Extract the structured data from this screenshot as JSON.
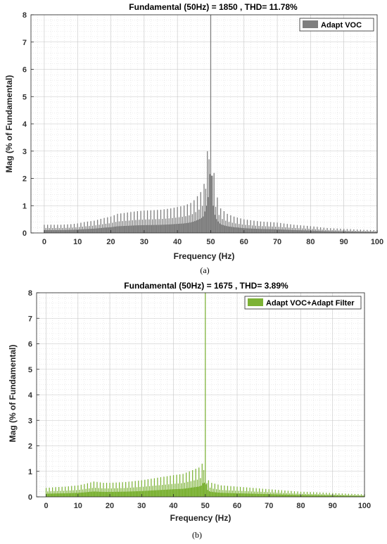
{
  "chart_data": [
    {
      "type": "bar",
      "title": "Fundamental (50Hz) = 1850 , THD= 11.78%",
      "xlabel": "Frequency (Hz)",
      "ylabel": "Mag (% of Fundamental)",
      "xlim": [
        -4,
        100
      ],
      "ylim": [
        0,
        8
      ],
      "xticks": [
        0,
        10,
        20,
        30,
        40,
        50,
        60,
        70,
        80,
        90,
        100
      ],
      "yticks": [
        0,
        1,
        2,
        3,
        4,
        5,
        6,
        7,
        8
      ],
      "grid": true,
      "minor_grid": true,
      "legend_position": "top-right",
      "caption": "(a)",
      "series": [
        {
          "name": "Adapt VOC",
          "color": "#7f7f7f",
          "envelope": {
            "x": [
              0,
              2,
              5,
              8,
              10,
              12,
              15,
              18,
              20,
              22,
              25,
              28,
              30,
              32,
              35,
              38,
              40,
              42,
              44,
              45,
              46,
              47,
              48,
              48.5,
              49,
              49.5,
              49.8,
              50,
              50.2,
              50.5,
              51,
              51.5,
              52,
              53,
              54,
              55,
              57,
              60,
              63,
              65,
              70,
              75,
              80,
              85,
              90,
              95,
              100
            ],
            "y": [
              0.3,
              0.3,
              0.3,
              0.32,
              0.35,
              0.4,
              0.45,
              0.55,
              0.6,
              0.7,
              0.75,
              0.8,
              0.82,
              0.83,
              0.85,
              0.9,
              0.95,
              1.0,
              1.1,
              1.2,
              1.35,
              1.5,
              1.8,
              2.7,
              3.0,
              4.5,
              6.5,
              8.0,
              6.5,
              3.5,
              2.2,
              1.6,
              1.3,
              0.9,
              0.8,
              0.7,
              0.6,
              0.5,
              0.45,
              0.42,
              0.38,
              0.3,
              0.25,
              0.18,
              0.15,
              0.12,
              0.1
            ]
          }
        }
      ]
    },
    {
      "type": "bar",
      "title": "Fundamental (50Hz) = 1675 , THD= 3.89%",
      "xlabel": "Frequency (Hz)",
      "ylabel": "Mag (% of Fundamental)",
      "xlim": [
        -3,
        100
      ],
      "ylim": [
        0,
        8
      ],
      "xticks": [
        0,
        10,
        20,
        30,
        40,
        50,
        60,
        70,
        80,
        90,
        100
      ],
      "yticks": [
        0,
        1,
        2,
        3,
        4,
        5,
        6,
        7,
        8
      ],
      "grid": true,
      "minor_grid": true,
      "legend_position": "top-right",
      "caption": "(b)",
      "series": [
        {
          "name": "Adapt VOC+Adapt Filter",
          "color": "#7cb235",
          "envelope": {
            "x": [
              0,
              3,
              6,
              10,
              12,
              15,
              18,
              20,
              25,
              30,
              35,
              40,
              43,
              45,
              47,
              48,
              49,
              49.5,
              49.8,
              50,
              50.2,
              50.5,
              51,
              52,
              55,
              60,
              65,
              70,
              75,
              80,
              85,
              90,
              95,
              100
            ],
            "y": [
              0.35,
              0.38,
              0.4,
              0.45,
              0.5,
              0.6,
              0.55,
              0.55,
              0.58,
              0.65,
              0.75,
              0.85,
              0.9,
              1.0,
              1.1,
              1.15,
              1.3,
              1.75,
              1.55,
              8.0,
              1.5,
              0.9,
              0.65,
              0.55,
              0.45,
              0.4,
              0.35,
              0.3,
              0.25,
              0.2,
              0.18,
              0.15,
              0.12,
              0.1
            ]
          }
        }
      ]
    }
  ]
}
